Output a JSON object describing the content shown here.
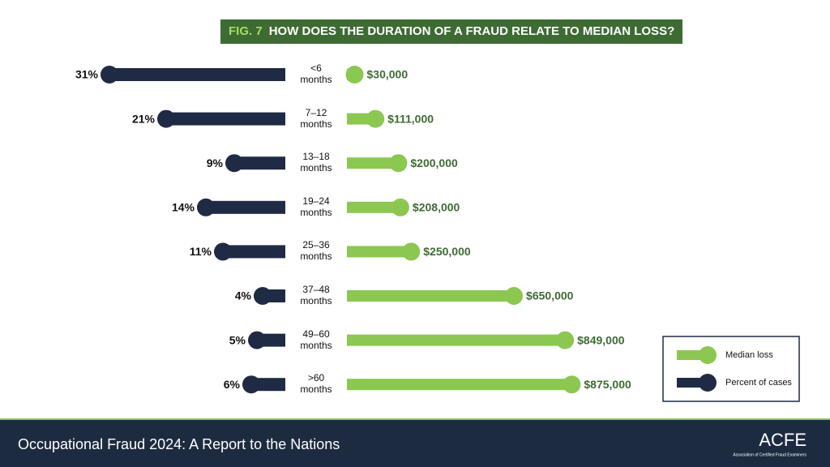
{
  "chart_data": {
    "type": "butterfly",
    "figure_label": "FIG. 7",
    "title": "HOW DOES THE DURATION OF A FRAUD RELATE TO MEDIAN LOSS?",
    "categories": [
      "<6 months",
      "7–12 months",
      "13–18 months",
      "19–24 months",
      "25–36 months",
      "37–48 months",
      "49–60 months",
      ">60 months"
    ],
    "series": [
      {
        "name": "Median loss",
        "color": "#8cc751",
        "side": "right",
        "values": [
          30000,
          111000,
          200000,
          208000,
          250000,
          650000,
          849000,
          875000
        ],
        "value_labels": [
          "$30,000",
          "$111,000",
          "$200,000",
          "$208,000",
          "$250,000",
          "$650,000",
          "$849,000",
          "$875,000"
        ]
      },
      {
        "name": "Percent of cases",
        "color": "#1f2a44",
        "side": "left",
        "values": [
          31,
          21,
          9,
          14,
          11,
          4,
          5,
          6
        ],
        "value_labels": [
          "31%",
          "21%",
          "9%",
          "14%",
          "11%",
          "4%",
          "5%",
          "6%"
        ]
      }
    ]
  },
  "footer": {
    "title": "Occupational Fraud 2024: A Report to the Nations",
    "logo": "ACFE",
    "logo_subtitle": "Association of Certified Fraud Examiners"
  }
}
